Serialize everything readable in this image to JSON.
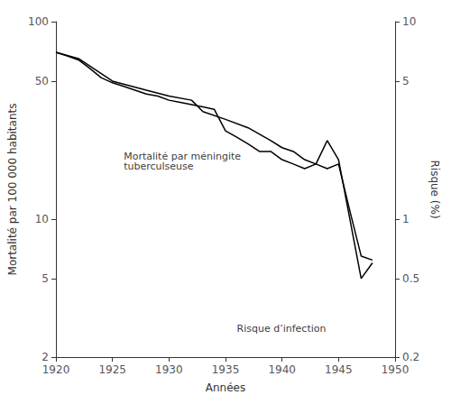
{
  "chart_data": {
    "type": "line",
    "xlabel": "Années",
    "ylabel": "Mortalité par 100 000 habitants",
    "y2label": "Risque (%)",
    "log": "y",
    "grid": false,
    "xlim": [
      1920,
      1950
    ],
    "xticks": [
      1920,
      1925,
      1930,
      1935,
      1940,
      1945,
      1950
    ],
    "ylim": [
      2,
      100
    ],
    "yticks": [
      2,
      5,
      10,
      50,
      100
    ],
    "y2lim": [
      0.2,
      10
    ],
    "y2ticks": [
      0.2,
      0.5,
      1,
      5,
      10
    ],
    "series": [
      {
        "color": "#000000",
        "x": [
          1920,
          1921,
          1922,
          1923,
          1924,
          1925,
          1926,
          1927,
          1928,
          1929,
          1930,
          1931,
          1932,
          1933,
          1934,
          1935,
          1936,
          1937,
          1938,
          1939,
          1940,
          1941,
          1942,
          1943,
          1944,
          1945,
          1946,
          1947,
          1948
        ],
        "values": [
          70,
          67,
          64,
          58,
          52,
          49,
          47,
          45,
          43,
          42,
          40,
          39,
          38,
          37,
          36,
          28,
          26,
          24,
          22,
          22,
          20,
          19,
          18,
          19,
          25,
          20,
          10,
          5,
          6
        ]
      },
      {
        "color": "#000000",
        "axis": "y2",
        "x": [
          1920,
          1922,
          1925,
          1928,
          1930,
          1932,
          1933,
          1935,
          1937,
          1939,
          1940,
          1941,
          1942,
          1943,
          1944,
          1945,
          1946,
          1947,
          1948
        ],
        "values": [
          7.0,
          6.5,
          5.0,
          4.5,
          4.2,
          4.0,
          3.5,
          3.2,
          2.9,
          2.5,
          2.3,
          2.2,
          2.0,
          1.9,
          1.8,
          1.9,
          1.1,
          0.65,
          0.62
        ]
      }
    ],
    "annotations": [
      {
        "text": "Risque d’infection",
        "x": 1936,
        "y": 2.8
      },
      {
        "text": "Mortalité par méningite\ntuberculseuse",
        "x": 1926,
        "y": 22
      }
    ]
  }
}
